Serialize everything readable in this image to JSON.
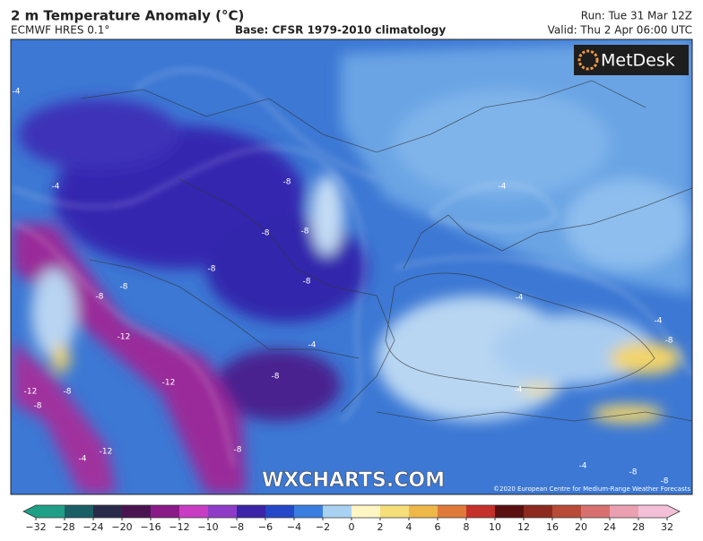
{
  "header": {
    "title": "2 m Temperature Anomaly (°C)",
    "model": "ECMWF HRES 0.1°",
    "base": "Base: CFSR 1979-2010 climatology",
    "run": "Run: Tue 31 Mar 12Z",
    "valid": "Valid: Thu 2 Apr 06:00 UTC"
  },
  "logo": "MetDesk",
  "watermark": "WXCHARTS.COM",
  "copyright": "©2020 European Centre for Medium-Range Weather Forecasts",
  "map": {
    "contour_labels": [
      -4,
      -4,
      -8,
      -8,
      -8,
      -8,
      -8,
      -8,
      -8,
      -12,
      -12,
      -12,
      -8,
      -8,
      -12,
      -8,
      -8,
      -4,
      -4,
      -4,
      -4,
      -8,
      -4,
      -8,
      -4,
      -8,
      -4
    ]
  },
  "colorbar": {
    "ticks": [
      {
        "value": -32,
        "label": "−32"
      },
      {
        "value": -28,
        "label": "−28"
      },
      {
        "value": -24,
        "label": "−24"
      },
      {
        "value": -20,
        "label": "−20"
      },
      {
        "value": -16,
        "label": "−16"
      },
      {
        "value": -12,
        "label": "−12"
      },
      {
        "value": -10,
        "label": "−10"
      },
      {
        "value": -8,
        "label": "−8"
      },
      {
        "value": -6,
        "label": "−6"
      },
      {
        "value": -4,
        "label": "−4"
      },
      {
        "value": -2,
        "label": "−2"
      },
      0,
      2,
      4,
      6,
      8,
      10,
      12,
      16,
      20,
      24,
      28,
      32
    ],
    "colors": [
      "#1f9f86",
      "#1a5f66",
      "#2a2a4a",
      "#4a1450",
      "#8a1a88",
      "#c83cc4",
      "#8e3cc8",
      "#3c24a8",
      "#2448c8",
      "#3a7ee0",
      "#a9d2f2",
      "#fff6c4",
      "#f6de78",
      "#eeb848",
      "#e07a3a",
      "#c4302a",
      "#5a1010",
      "#8c2a20",
      "#b84a38",
      "#d87070",
      "#eaa0b0",
      "#f4c0d8"
    ]
  }
}
